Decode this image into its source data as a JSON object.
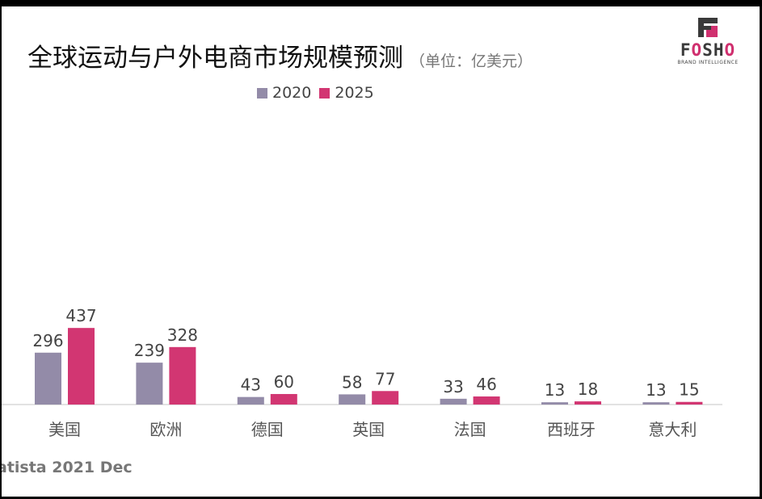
{
  "title": "全球运动与户外电商市场规模预测",
  "unit": "（单位：亿美元）",
  "logo": {
    "name": "FOSHO",
    "tagline": "BRAND INTELLIGENCE"
  },
  "source": "atista 2021 Dec",
  "chart_data": {
    "type": "bar",
    "title": "全球运动与户外电商市场规模预测",
    "categories": [
      "美国",
      "欧洲",
      "德国",
      "英国",
      "法国",
      "西班牙",
      "意大利"
    ],
    "series": [
      {
        "name": "2020",
        "color": "#938ba8",
        "values": [
          296,
          239,
          43,
          58,
          33,
          13,
          13
        ]
      },
      {
        "name": "2025",
        "color": "#d23672",
        "values": [
          437,
          328,
          60,
          77,
          46,
          18,
          15
        ]
      }
    ],
    "xlabel": "",
    "ylabel": "亿美元",
    "legend": "top-center",
    "grid": false
  }
}
